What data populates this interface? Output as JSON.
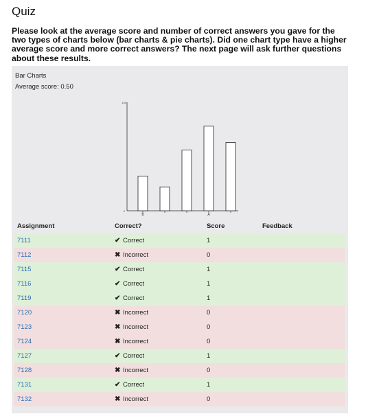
{
  "page": {
    "title": "Quiz",
    "instructions": "Please look at the average score and number of correct answers you gave for the two types of charts below (bar charts & pie charts). Did one chart type have a higher average score and more correct answers? The next page will ask further questions about these results."
  },
  "panel": {
    "title": "Bar Charts",
    "average_label": "Average score: 0.50"
  },
  "chart_data": {
    "type": "bar",
    "categories": [
      "B",
      "",
      "",
      "A",
      ""
    ],
    "values": [
      32,
      22,
      56,
      78,
      63
    ],
    "ylim": [
      0,
      100
    ],
    "y_ticks": [
      "0",
      "100"
    ],
    "grid": false,
    "colors": {
      "bar_fill": "#ffffff",
      "bar_stroke": "#222222",
      "axis": "#555555"
    }
  },
  "table": {
    "headers": {
      "assignment": "Assignment",
      "correct": "Correct?",
      "score": "Score",
      "feedback": "Feedback"
    },
    "rows": [
      {
        "assignment": "7111",
        "status": "correct",
        "correct": "Correct",
        "score": "1"
      },
      {
        "assignment": "7112",
        "status": "incorrect",
        "correct": "Incorrect",
        "score": "0"
      },
      {
        "assignment": "7115",
        "status": "correct",
        "correct": "Correct",
        "score": "1"
      },
      {
        "assignment": "7116",
        "status": "correct",
        "correct": "Correct",
        "score": "1"
      },
      {
        "assignment": "7119",
        "status": "correct",
        "correct": "Correct",
        "score": "1"
      },
      {
        "assignment": "7120",
        "status": "incorrect",
        "correct": "Incorrect",
        "score": "0"
      },
      {
        "assignment": "7123",
        "status": "incorrect",
        "correct": "Incorrect",
        "score": "0"
      },
      {
        "assignment": "7124",
        "status": "incorrect",
        "correct": "Incorrect",
        "score": "0"
      },
      {
        "assignment": "7127",
        "status": "correct",
        "correct": "Correct",
        "score": "1"
      },
      {
        "assignment": "7128",
        "status": "incorrect",
        "correct": "Incorrect",
        "score": "0"
      },
      {
        "assignment": "7131",
        "status": "correct",
        "correct": "Correct",
        "score": "1"
      },
      {
        "assignment": "7132",
        "status": "incorrect",
        "correct": "Incorrect",
        "score": "0"
      }
    ]
  },
  "icons": {
    "correct": "check-icon",
    "incorrect": "cross-icon"
  }
}
